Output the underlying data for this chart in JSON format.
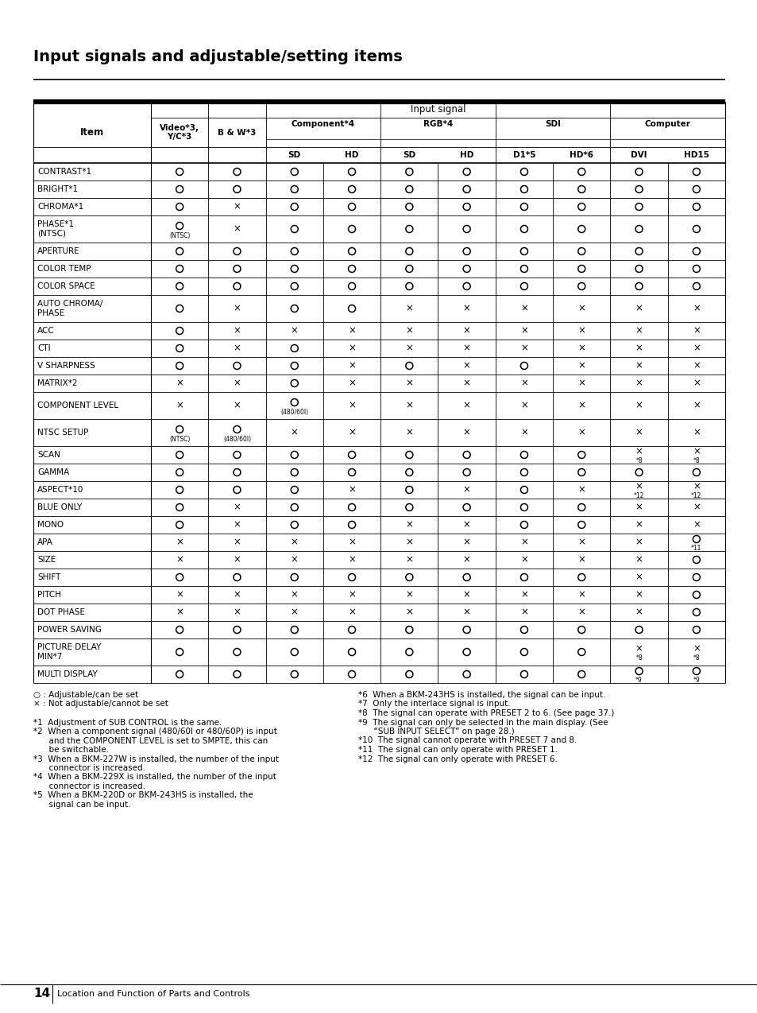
{
  "title": "Input signals and adjustable/setting items",
  "rows": [
    {
      "item": [
        "CONTRAST*1"
      ],
      "vals": [
        "O",
        "O",
        "O",
        "O",
        "O",
        "O",
        "O",
        "O",
        "O",
        "O"
      ]
    },
    {
      "item": [
        "BRIGHT*1"
      ],
      "vals": [
        "O",
        "O",
        "O",
        "O",
        "O",
        "O",
        "O",
        "O",
        "O",
        "O"
      ]
    },
    {
      "item": [
        "CHROMA*1"
      ],
      "vals": [
        "O",
        "X",
        "O",
        "O",
        "O",
        "O",
        "O",
        "O",
        "O",
        "O"
      ]
    },
    {
      "item": [
        "PHASE*1",
        "(NTSC)"
      ],
      "vals": [
        "O|(NTSC)",
        "X",
        "O",
        "O",
        "O",
        "O",
        "O",
        "O",
        "O",
        "O"
      ]
    },
    {
      "item": [
        "APERTURE"
      ],
      "vals": [
        "O",
        "O",
        "O",
        "O",
        "O",
        "O",
        "O",
        "O",
        "O",
        "O"
      ]
    },
    {
      "item": [
        "COLOR TEMP"
      ],
      "vals": [
        "O",
        "O",
        "O",
        "O",
        "O",
        "O",
        "O",
        "O",
        "O",
        "O"
      ]
    },
    {
      "item": [
        "COLOR SPACE"
      ],
      "vals": [
        "O",
        "O",
        "O",
        "O",
        "O",
        "O",
        "O",
        "O",
        "O",
        "O"
      ]
    },
    {
      "item": [
        "AUTO CHROMA/",
        "PHASE"
      ],
      "vals": [
        "O",
        "X",
        "O",
        "O",
        "X",
        "X",
        "X",
        "X",
        "X",
        "X"
      ]
    },
    {
      "item": [
        "ACC"
      ],
      "vals": [
        "O",
        "X",
        "X",
        "X",
        "X",
        "X",
        "X",
        "X",
        "X",
        "X"
      ]
    },
    {
      "item": [
        "CTI"
      ],
      "vals": [
        "O",
        "X",
        "O",
        "X",
        "X",
        "X",
        "X",
        "X",
        "X",
        "X"
      ]
    },
    {
      "item": [
        "V SHARPNESS"
      ],
      "vals": [
        "O",
        "O",
        "O",
        "X",
        "O",
        "X",
        "O",
        "X",
        "X",
        "X"
      ]
    },
    {
      "item": [
        "MATRIX*2"
      ],
      "vals": [
        "X",
        "X",
        "O",
        "X",
        "X",
        "X",
        "X",
        "X",
        "X",
        "X"
      ]
    },
    {
      "item": [
        "COMPONENT LEVEL"
      ],
      "vals": [
        "X",
        "X",
        "O|(480/60I)",
        "X",
        "X",
        "X",
        "X",
        "X",
        "X",
        "X"
      ]
    },
    {
      "item": [
        "NTSC SETUP"
      ],
      "vals": [
        "O|(NTSC)",
        "O|(480/60I)",
        "X",
        "X",
        "X",
        "X",
        "X",
        "X",
        "X",
        "X"
      ]
    },
    {
      "item": [
        "SCAN"
      ],
      "vals": [
        "O",
        "O",
        "O",
        "O",
        "O",
        "O",
        "O",
        "O",
        "X|*8",
        "X|*8"
      ]
    },
    {
      "item": [
        "GAMMA"
      ],
      "vals": [
        "O",
        "O",
        "O",
        "O",
        "O",
        "O",
        "O",
        "O",
        "O",
        "O"
      ]
    },
    {
      "item": [
        "ASPECT*10"
      ],
      "vals": [
        "O",
        "O",
        "O",
        "X",
        "O",
        "X",
        "O",
        "X",
        "X|*12",
        "X|*12"
      ]
    },
    {
      "item": [
        "BLUE ONLY"
      ],
      "vals": [
        "O",
        "X",
        "O",
        "O",
        "O",
        "O",
        "O",
        "O",
        "X",
        "X"
      ]
    },
    {
      "item": [
        "MONO"
      ],
      "vals": [
        "O",
        "X",
        "O",
        "O",
        "X",
        "X",
        "O",
        "O",
        "X",
        "X"
      ]
    },
    {
      "item": [
        "APA"
      ],
      "vals": [
        "X",
        "X",
        "X",
        "X",
        "X",
        "X",
        "X",
        "X",
        "X",
        "O|*11"
      ]
    },
    {
      "item": [
        "SIZE"
      ],
      "vals": [
        "X",
        "X",
        "X",
        "X",
        "X",
        "X",
        "X",
        "X",
        "X",
        "O"
      ]
    },
    {
      "item": [
        "SHIFT"
      ],
      "vals": [
        "O",
        "O",
        "O",
        "O",
        "O",
        "O",
        "O",
        "O",
        "X",
        "O"
      ]
    },
    {
      "item": [
        "PITCH"
      ],
      "vals": [
        "X",
        "X",
        "X",
        "X",
        "X",
        "X",
        "X",
        "X",
        "X",
        "O"
      ]
    },
    {
      "item": [
        "DOT PHASE"
      ],
      "vals": [
        "X",
        "X",
        "X",
        "X",
        "X",
        "X",
        "X",
        "X",
        "X",
        "O"
      ]
    },
    {
      "item": [
        "POWER SAVING"
      ],
      "vals": [
        "O",
        "O",
        "O",
        "O",
        "O",
        "O",
        "O",
        "O",
        "O",
        "O"
      ]
    },
    {
      "item": [
        "PICTURE DELAY",
        "MIN*7"
      ],
      "vals": [
        "O",
        "O",
        "O",
        "O",
        "O",
        "O",
        "O",
        "O",
        "X|*8",
        "X|*8"
      ]
    },
    {
      "item": [
        "MULTI DISPLAY"
      ],
      "vals": [
        "O",
        "O",
        "O",
        "O",
        "O",
        "O",
        "O",
        "O",
        "O|*9",
        "O|*9"
      ]
    }
  ],
  "fn_left": [
    "○ : Adjustable/can be set",
    "× : Not adjustable/cannot be set",
    "",
    "*1  Adjustment of SUB CONTROL is the same.",
    "*2  When a component signal (480/60I or 480/60P) is input",
    "      and the COMPONENT LEVEL is set to SMPTE, this can",
    "      be switchable.",
    "*3  When a BKM-227W is installed, the number of the input",
    "      connector is increased.",
    "*4  When a BKM-229X is installed, the number of the input",
    "      connector is increased.",
    "*5  When a BKM-220D or BKM-243HS is installed, the",
    "      signal can be input."
  ],
  "fn_right": [
    "*6  When a BKM-243HS is installed, the signal can be input.",
    "*7  Only the interlace signal is input.",
    "*8  The signal can operate with PRESET 2 to 6. (See page 37.)",
    "*9  The signal can only be selected in the main display. (See",
    "      “SUB INPUT SELECT” on page 28.)",
    "*10  The signal cannot operate with PRESET 7 and 8.",
    "*11  The signal can only operate with PRESET 1.",
    "*12  The signal can only operate with PRESET 6."
  ]
}
